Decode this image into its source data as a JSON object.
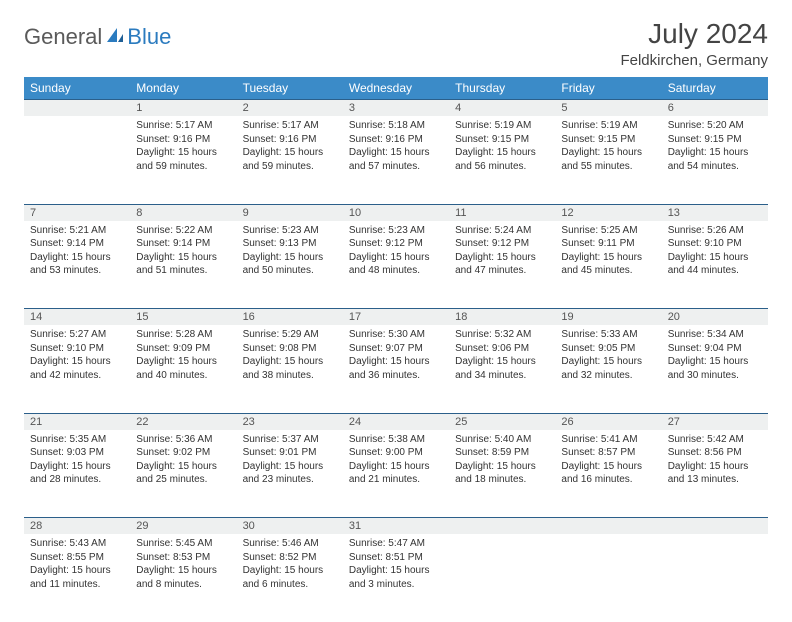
{
  "logo": {
    "general": "General",
    "blue": "Blue"
  },
  "title": "July 2024",
  "location": "Feldkirchen, Germany",
  "colors": {
    "header_bg": "#3b8bc8",
    "header_text": "#ffffff",
    "daynum_bg": "#eef0f0",
    "row_border": "#2b5f8a",
    "body_text": "#333333",
    "logo_gray": "#5a5a5a",
    "logo_blue": "#2b7bbf"
  },
  "weekdays": [
    "Sunday",
    "Monday",
    "Tuesday",
    "Wednesday",
    "Thursday",
    "Friday",
    "Saturday"
  ],
  "weeks": [
    {
      "nums": [
        "",
        "1",
        "2",
        "3",
        "4",
        "5",
        "6"
      ],
      "cells": [
        null,
        {
          "sunrise": "Sunrise: 5:17 AM",
          "sunset": "Sunset: 9:16 PM",
          "daylight": "Daylight: 15 hours and 59 minutes."
        },
        {
          "sunrise": "Sunrise: 5:17 AM",
          "sunset": "Sunset: 9:16 PM",
          "daylight": "Daylight: 15 hours and 59 minutes."
        },
        {
          "sunrise": "Sunrise: 5:18 AM",
          "sunset": "Sunset: 9:16 PM",
          "daylight": "Daylight: 15 hours and 57 minutes."
        },
        {
          "sunrise": "Sunrise: 5:19 AM",
          "sunset": "Sunset: 9:15 PM",
          "daylight": "Daylight: 15 hours and 56 minutes."
        },
        {
          "sunrise": "Sunrise: 5:19 AM",
          "sunset": "Sunset: 9:15 PM",
          "daylight": "Daylight: 15 hours and 55 minutes."
        },
        {
          "sunrise": "Sunrise: 5:20 AM",
          "sunset": "Sunset: 9:15 PM",
          "daylight": "Daylight: 15 hours and 54 minutes."
        }
      ]
    },
    {
      "nums": [
        "7",
        "8",
        "9",
        "10",
        "11",
        "12",
        "13"
      ],
      "cells": [
        {
          "sunrise": "Sunrise: 5:21 AM",
          "sunset": "Sunset: 9:14 PM",
          "daylight": "Daylight: 15 hours and 53 minutes."
        },
        {
          "sunrise": "Sunrise: 5:22 AM",
          "sunset": "Sunset: 9:14 PM",
          "daylight": "Daylight: 15 hours and 51 minutes."
        },
        {
          "sunrise": "Sunrise: 5:23 AM",
          "sunset": "Sunset: 9:13 PM",
          "daylight": "Daylight: 15 hours and 50 minutes."
        },
        {
          "sunrise": "Sunrise: 5:23 AM",
          "sunset": "Sunset: 9:12 PM",
          "daylight": "Daylight: 15 hours and 48 minutes."
        },
        {
          "sunrise": "Sunrise: 5:24 AM",
          "sunset": "Sunset: 9:12 PM",
          "daylight": "Daylight: 15 hours and 47 minutes."
        },
        {
          "sunrise": "Sunrise: 5:25 AM",
          "sunset": "Sunset: 9:11 PM",
          "daylight": "Daylight: 15 hours and 45 minutes."
        },
        {
          "sunrise": "Sunrise: 5:26 AM",
          "sunset": "Sunset: 9:10 PM",
          "daylight": "Daylight: 15 hours and 44 minutes."
        }
      ]
    },
    {
      "nums": [
        "14",
        "15",
        "16",
        "17",
        "18",
        "19",
        "20"
      ],
      "cells": [
        {
          "sunrise": "Sunrise: 5:27 AM",
          "sunset": "Sunset: 9:10 PM",
          "daylight": "Daylight: 15 hours and 42 minutes."
        },
        {
          "sunrise": "Sunrise: 5:28 AM",
          "sunset": "Sunset: 9:09 PM",
          "daylight": "Daylight: 15 hours and 40 minutes."
        },
        {
          "sunrise": "Sunrise: 5:29 AM",
          "sunset": "Sunset: 9:08 PM",
          "daylight": "Daylight: 15 hours and 38 minutes."
        },
        {
          "sunrise": "Sunrise: 5:30 AM",
          "sunset": "Sunset: 9:07 PM",
          "daylight": "Daylight: 15 hours and 36 minutes."
        },
        {
          "sunrise": "Sunrise: 5:32 AM",
          "sunset": "Sunset: 9:06 PM",
          "daylight": "Daylight: 15 hours and 34 minutes."
        },
        {
          "sunrise": "Sunrise: 5:33 AM",
          "sunset": "Sunset: 9:05 PM",
          "daylight": "Daylight: 15 hours and 32 minutes."
        },
        {
          "sunrise": "Sunrise: 5:34 AM",
          "sunset": "Sunset: 9:04 PM",
          "daylight": "Daylight: 15 hours and 30 minutes."
        }
      ]
    },
    {
      "nums": [
        "21",
        "22",
        "23",
        "24",
        "25",
        "26",
        "27"
      ],
      "cells": [
        {
          "sunrise": "Sunrise: 5:35 AM",
          "sunset": "Sunset: 9:03 PM",
          "daylight": "Daylight: 15 hours and 28 minutes."
        },
        {
          "sunrise": "Sunrise: 5:36 AM",
          "sunset": "Sunset: 9:02 PM",
          "daylight": "Daylight: 15 hours and 25 minutes."
        },
        {
          "sunrise": "Sunrise: 5:37 AM",
          "sunset": "Sunset: 9:01 PM",
          "daylight": "Daylight: 15 hours and 23 minutes."
        },
        {
          "sunrise": "Sunrise: 5:38 AM",
          "sunset": "Sunset: 9:00 PM",
          "daylight": "Daylight: 15 hours and 21 minutes."
        },
        {
          "sunrise": "Sunrise: 5:40 AM",
          "sunset": "Sunset: 8:59 PM",
          "daylight": "Daylight: 15 hours and 18 minutes."
        },
        {
          "sunrise": "Sunrise: 5:41 AM",
          "sunset": "Sunset: 8:57 PM",
          "daylight": "Daylight: 15 hours and 16 minutes."
        },
        {
          "sunrise": "Sunrise: 5:42 AM",
          "sunset": "Sunset: 8:56 PM",
          "daylight": "Daylight: 15 hours and 13 minutes."
        }
      ]
    },
    {
      "nums": [
        "28",
        "29",
        "30",
        "31",
        "",
        "",
        ""
      ],
      "cells": [
        {
          "sunrise": "Sunrise: 5:43 AM",
          "sunset": "Sunset: 8:55 PM",
          "daylight": "Daylight: 15 hours and 11 minutes."
        },
        {
          "sunrise": "Sunrise: 5:45 AM",
          "sunset": "Sunset: 8:53 PM",
          "daylight": "Daylight: 15 hours and 8 minutes."
        },
        {
          "sunrise": "Sunrise: 5:46 AM",
          "sunset": "Sunset: 8:52 PM",
          "daylight": "Daylight: 15 hours and 6 minutes."
        },
        {
          "sunrise": "Sunrise: 5:47 AM",
          "sunset": "Sunset: 8:51 PM",
          "daylight": "Daylight: 15 hours and 3 minutes."
        },
        null,
        null,
        null
      ]
    }
  ]
}
